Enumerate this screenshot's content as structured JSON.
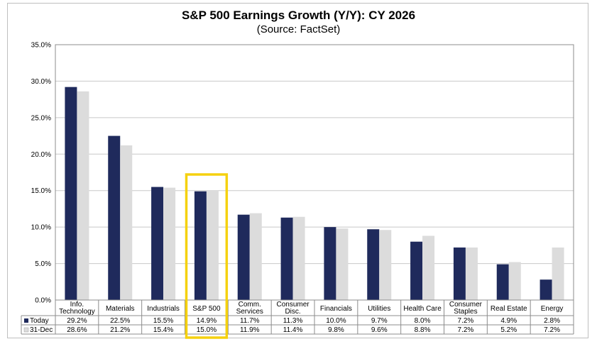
{
  "chart_data": {
    "type": "bar",
    "title": "S&P 500 Earnings Growth (Y/Y): CY 2026",
    "subtitle": "(Source: FactSet)",
    "xlabel": "",
    "ylabel": "",
    "ylim": [
      0,
      35
    ],
    "yticks": [
      "0.0%",
      "5.0%",
      "10.0%",
      "15.0%",
      "20.0%",
      "25.0%",
      "30.0%",
      "35.0%"
    ],
    "grid": true,
    "legend_position": "data-table-left",
    "categories": [
      [
        "Info.",
        "Technology"
      ],
      [
        "Materials"
      ],
      [
        "Industrials"
      ],
      [
        "S&P 500"
      ],
      [
        "Comm.",
        "Services"
      ],
      [
        "Consumer",
        "Disc."
      ],
      [
        "Financials"
      ],
      [
        "Utilities"
      ],
      [
        "Health Care"
      ],
      [
        "Consumer",
        "Staples"
      ],
      [
        "Real Estate"
      ],
      [
        "Energy"
      ]
    ],
    "highlight_category": "S&P 500",
    "series": [
      {
        "name": "Today",
        "color": "#1f2a5c",
        "values": [
          29.2,
          22.5,
          15.5,
          14.9,
          11.7,
          11.3,
          10.0,
          9.7,
          8.0,
          7.2,
          4.9,
          2.8
        ],
        "labels": [
          "29.2%",
          "22.5%",
          "15.5%",
          "14.9%",
          "11.7%",
          "11.3%",
          "10.0%",
          "9.7%",
          "8.0%",
          "7.2%",
          "4.9%",
          "2.8%"
        ]
      },
      {
        "name": "31-Dec",
        "color": "#dcdcdc",
        "values": [
          28.6,
          21.2,
          15.4,
          15.0,
          11.9,
          11.4,
          9.8,
          9.6,
          8.8,
          7.2,
          5.2,
          7.2
        ],
        "labels": [
          "28.6%",
          "21.2%",
          "15.4%",
          "15.0%",
          "11.9%",
          "11.4%",
          "9.8%",
          "9.6%",
          "8.8%",
          "7.2%",
          "5.2%",
          "7.2%"
        ]
      }
    ],
    "highlight_color": "#f5d10f"
  }
}
